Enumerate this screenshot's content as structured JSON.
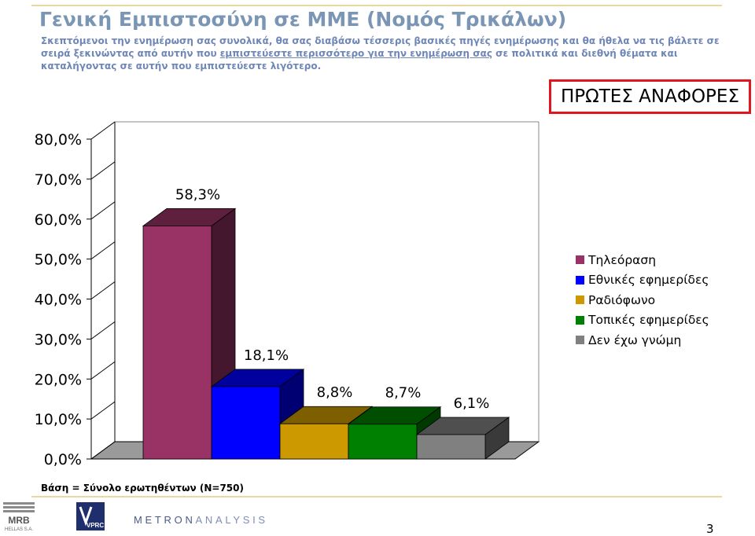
{
  "header": {
    "title": "Γενική Εμπιστοσύνη σε ΜΜΕ (Νομός Τρικάλων)",
    "subtitle_part1": "Σκεπτόμενοι την ενημέρωση σας συνολικά, θα σας διαβάσω τέσσερις βασικές πηγές ενημέρωσης και θα ήθελα να τις βάλετε σε σειρά ξεκινώντας από αυτήν που ",
    "subtitle_underlined": "εμπιστεύεστε περισσότερο για την ενημέρωση σας",
    "subtitle_part2": " σε πολιτικά και διεθνή θέματα και καταλήγοντας σε αυτήν που εμπιστεύεστε λιγότερο."
  },
  "badge": {
    "label": "ΠΡΩΤΕΣ ΑΝΑΦΟΡΕΣ"
  },
  "chart_data": {
    "type": "bar",
    "categories": [
      "Τηλεόραση",
      "Εθνικές εφημερίδες",
      "Ραδιόφωνο",
      "Τοπικές εφημερίδες",
      "Δεν έχω γνώμη"
    ],
    "values": [
      58.3,
      18.1,
      8.8,
      8.7,
      6.1
    ],
    "data_labels": [
      "58,3%",
      "18,1%",
      "8,8%",
      "8,7%",
      "6,1%"
    ],
    "colors": [
      "#993366",
      "#0000ff",
      "#cc9900",
      "#008000",
      "#808080"
    ],
    "y_ticks": [
      0,
      10,
      20,
      30,
      40,
      50,
      60,
      70,
      80
    ],
    "y_tick_labels": [
      "0,0%",
      "10,0%",
      "20,0%",
      "30,0%",
      "40,0%",
      "50,0%",
      "60,0%",
      "70,0%",
      "80,0%"
    ],
    "ylim": [
      0,
      80
    ],
    "three_d": true,
    "legend_position": "right"
  },
  "footer": {
    "base_note": "Βάση = Σύνολο ερωτηθέντων (Ν=750)",
    "logo_mrb_top": "MRB",
    "logo_mrb_bottom": "HELLAS S.A.",
    "logo_vprc": "VPRC",
    "metron_bold": "METRON",
    "metron_thin": "ANALYSIS",
    "page_number": "3"
  }
}
